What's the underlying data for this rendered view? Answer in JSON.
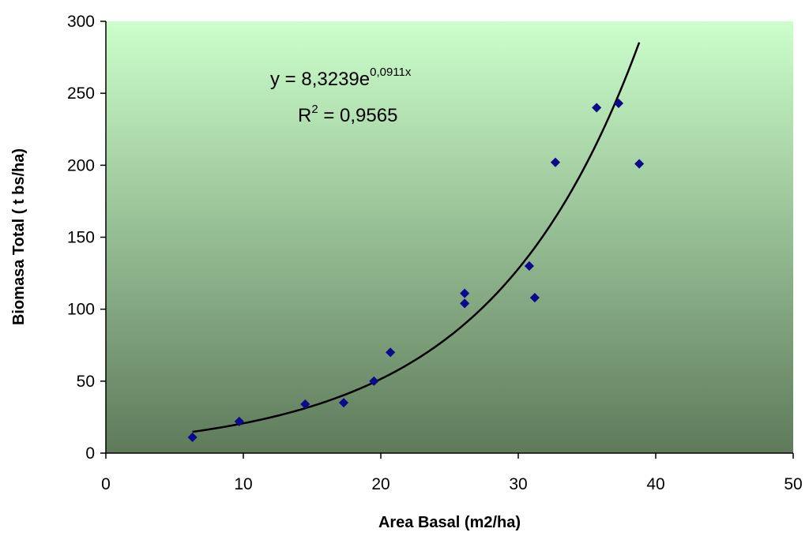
{
  "chart_data": {
    "type": "scatter",
    "xlabel": "Area Basal (m2/ha)",
    "ylabel": "Biomasa Total ( t bs/ha)",
    "xlim": [
      0,
      50
    ],
    "ylim": [
      0,
      300
    ],
    "xticks": [
      "0",
      "10",
      "20",
      "30",
      "40",
      "50"
    ],
    "yticks": [
      "0",
      "50",
      "100",
      "150",
      "200",
      "250",
      "300"
    ],
    "grid": false,
    "legend": "none",
    "marker": "diamond",
    "colors": {
      "marker": "#0a0a8c",
      "trendline": "#000000",
      "plot_bg_top": "#ccffcc",
      "plot_bg_bottom": "#5e7a5a"
    },
    "points": [
      {
        "x": 6.3,
        "y": 11
      },
      {
        "x": 9.7,
        "y": 22
      },
      {
        "x": 14.5,
        "y": 34
      },
      {
        "x": 17.3,
        "y": 35
      },
      {
        "x": 19.5,
        "y": 50
      },
      {
        "x": 20.7,
        "y": 70
      },
      {
        "x": 26.1,
        "y": 104
      },
      {
        "x": 26.1,
        "y": 111
      },
      {
        "x": 30.8,
        "y": 130
      },
      {
        "x": 31.2,
        "y": 108
      },
      {
        "x": 32.7,
        "y": 202
      },
      {
        "x": 35.7,
        "y": 240
      },
      {
        "x": 37.3,
        "y": 243
      },
      {
        "x": 38.8,
        "y": 201
      }
    ],
    "trendline": {
      "type": "exponential",
      "a": 8.3239,
      "b": 0.0911,
      "x_range": [
        6.3,
        38.8
      ],
      "equation_main": "y = 8,3239e",
      "equation_exp": "0,0911x",
      "r2_prefix": "R",
      "r2_sup": "2",
      "r2_value": " = 0,9565"
    }
  }
}
